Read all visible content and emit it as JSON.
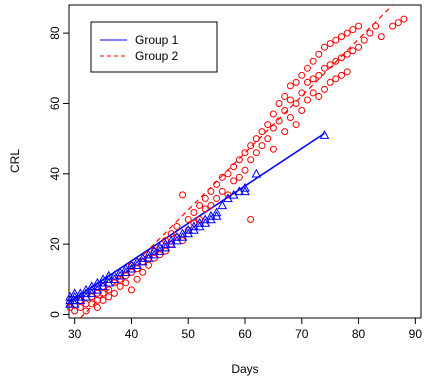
{
  "chart_data": {
    "type": "scatter",
    "title": "",
    "xlabel": "Days",
    "ylabel": "CRL",
    "xlim": [
      29,
      91
    ],
    "ylim": [
      -1,
      88
    ],
    "xticks": [
      30,
      40,
      50,
      60,
      70,
      80,
      90
    ],
    "yticks": [
      0,
      20,
      40,
      60,
      80
    ],
    "grid": false,
    "legend": {
      "position": "top-left",
      "entries": [
        {
          "label": "Group 1",
          "color": "#0000ff",
          "line": "solid",
          "marker": "triangle"
        },
        {
          "label": "Group 2",
          "color": "#ff0000",
          "line": "dashed",
          "marker": "circle"
        }
      ]
    },
    "series": [
      {
        "name": "Group 1",
        "color": "#0000ff",
        "marker": "triangle",
        "fit_line": [
          [
            29,
            3.5
          ],
          [
            74,
            51.5
          ]
        ],
        "points": [
          [
            29,
            3
          ],
          [
            29,
            4
          ],
          [
            29,
            5
          ],
          [
            30,
            3
          ],
          [
            30,
            4
          ],
          [
            30,
            5
          ],
          [
            30,
            6
          ],
          [
            31,
            4
          ],
          [
            31,
            5
          ],
          [
            31,
            6
          ],
          [
            32,
            5
          ],
          [
            32,
            6
          ],
          [
            32,
            7
          ],
          [
            33,
            6
          ],
          [
            33,
            7
          ],
          [
            33,
            8
          ],
          [
            34,
            7
          ],
          [
            34,
            8
          ],
          [
            34,
            9
          ],
          [
            35,
            8
          ],
          [
            35,
            9
          ],
          [
            35,
            10
          ],
          [
            36,
            9
          ],
          [
            36,
            10
          ],
          [
            36,
            11
          ],
          [
            37,
            10
          ],
          [
            37,
            11
          ],
          [
            38,
            11
          ],
          [
            38,
            12
          ],
          [
            39,
            12
          ],
          [
            39,
            13
          ],
          [
            40,
            13
          ],
          [
            40,
            14
          ],
          [
            41,
            14
          ],
          [
            41,
            15
          ],
          [
            42,
            15
          ],
          [
            42,
            16
          ],
          [
            43,
            16
          ],
          [
            43,
            17
          ],
          [
            44,
            17
          ],
          [
            44,
            18
          ],
          [
            45,
            18
          ],
          [
            45,
            19
          ],
          [
            46,
            19
          ],
          [
            46,
            20
          ],
          [
            47,
            20
          ],
          [
            47,
            21
          ],
          [
            48,
            21
          ],
          [
            48,
            22
          ],
          [
            49,
            22
          ],
          [
            49,
            23
          ],
          [
            50,
            23
          ],
          [
            50,
            24
          ],
          [
            51,
            24
          ],
          [
            51,
            25
          ],
          [
            52,
            25
          ],
          [
            52,
            26
          ],
          [
            53,
            26
          ],
          [
            53,
            27
          ],
          [
            54,
            27
          ],
          [
            54,
            28
          ],
          [
            55,
            28
          ],
          [
            55,
            29
          ],
          [
            56,
            31
          ],
          [
            57,
            33
          ],
          [
            58,
            34
          ],
          [
            59,
            35
          ],
          [
            60,
            35
          ],
          [
            60,
            36
          ],
          [
            62,
            40
          ],
          [
            74,
            51
          ]
        ]
      },
      {
        "name": "Group 2",
        "color": "#ff0000",
        "marker": "circle",
        "fit_line": [
          [
            31,
            -1
          ],
          [
            86,
            88
          ]
        ],
        "points": [
          [
            29,
            2
          ],
          [
            30,
            1
          ],
          [
            31,
            2
          ],
          [
            31,
            4
          ],
          [
            32,
            1
          ],
          [
            32,
            3
          ],
          [
            33,
            3
          ],
          [
            33,
            5
          ],
          [
            34,
            2
          ],
          [
            34,
            4
          ],
          [
            34,
            6
          ],
          [
            35,
            4
          ],
          [
            35,
            6
          ],
          [
            35,
            8
          ],
          [
            36,
            5
          ],
          [
            36,
            7
          ],
          [
            37,
            6
          ],
          [
            37,
            9
          ],
          [
            38,
            8
          ],
          [
            38,
            10
          ],
          [
            39,
            9
          ],
          [
            39,
            11
          ],
          [
            40,
            7
          ],
          [
            40,
            12
          ],
          [
            40,
            14
          ],
          [
            41,
            10
          ],
          [
            41,
            13
          ],
          [
            42,
            12
          ],
          [
            42,
            15
          ],
          [
            43,
            14
          ],
          [
            43,
            16
          ],
          [
            44,
            16
          ],
          [
            44,
            18
          ],
          [
            45,
            17
          ],
          [
            45,
            19
          ],
          [
            46,
            18
          ],
          [
            46,
            21
          ],
          [
            47,
            20
          ],
          [
            47,
            23
          ],
          [
            48,
            22
          ],
          [
            48,
            25
          ],
          [
            49,
            21
          ],
          [
            49,
            34
          ],
          [
            50,
            24
          ],
          [
            50,
            27
          ],
          [
            51,
            26
          ],
          [
            51,
            29
          ],
          [
            52,
            27
          ],
          [
            52,
            31
          ],
          [
            53,
            30
          ],
          [
            53,
            33
          ],
          [
            54,
            31
          ],
          [
            54,
            35
          ],
          [
            55,
            33
          ],
          [
            55,
            37
          ],
          [
            56,
            35
          ],
          [
            56,
            39
          ],
          [
            57,
            34
          ],
          [
            57,
            40
          ],
          [
            58,
            38
          ],
          [
            58,
            42
          ],
          [
            59,
            39
          ],
          [
            59,
            44
          ],
          [
            60,
            41
          ],
          [
            60,
            46
          ],
          [
            61,
            27
          ],
          [
            61,
            44
          ],
          [
            61,
            48
          ],
          [
            62,
            46
          ],
          [
            62,
            50
          ],
          [
            63,
            48
          ],
          [
            63,
            52
          ],
          [
            64,
            50
          ],
          [
            64,
            54
          ],
          [
            65,
            47
          ],
          [
            65,
            53
          ],
          [
            65,
            57
          ],
          [
            66,
            55
          ],
          [
            66,
            60
          ],
          [
            67,
            52
          ],
          [
            67,
            58
          ],
          [
            67,
            62
          ],
          [
            68,
            56
          ],
          [
            68,
            61
          ],
          [
            68,
            65
          ],
          [
            69,
            54
          ],
          [
            69,
            60
          ],
          [
            69,
            66
          ],
          [
            70,
            58
          ],
          [
            70,
            63
          ],
          [
            70,
            68
          ],
          [
            71,
            61
          ],
          [
            71,
            66
          ],
          [
            71,
            70
          ],
          [
            72,
            63
          ],
          [
            72,
            67
          ],
          [
            72,
            72
          ],
          [
            73,
            62
          ],
          [
            73,
            68
          ],
          [
            73,
            74
          ],
          [
            74,
            64
          ],
          [
            74,
            70
          ],
          [
            74,
            76
          ],
          [
            75,
            66
          ],
          [
            75,
            71
          ],
          [
            75,
            77
          ],
          [
            76,
            67
          ],
          [
            76,
            72
          ],
          [
            76,
            78
          ],
          [
            77,
            68
          ],
          [
            77,
            73
          ],
          [
            77,
            79
          ],
          [
            78,
            69
          ],
          [
            78,
            74
          ],
          [
            78,
            80
          ],
          [
            79,
            75
          ],
          [
            79,
            81
          ],
          [
            80,
            76
          ],
          [
            80,
            82
          ],
          [
            81,
            78
          ],
          [
            82,
            80
          ],
          [
            83,
            82
          ],
          [
            84,
            79
          ],
          [
            86,
            82
          ],
          [
            87,
            83
          ],
          [
            88,
            84
          ]
        ]
      }
    ]
  }
}
